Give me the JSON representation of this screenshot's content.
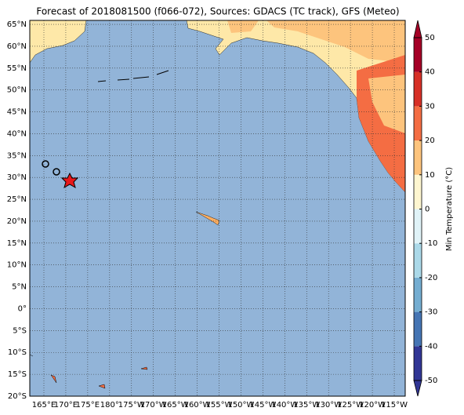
{
  "map": {
    "title": "Forecast of 2018081500 (f066-072), Sources: GDACS (TC track), GFS (Meteo)",
    "ocean_color": "#92b4d8",
    "grid": true,
    "xlim": [
      161.78,
      247.5
    ],
    "ylim": [
      -20,
      65.9
    ],
    "xticks": [
      {
        "value": 165,
        "label": "165°E"
      },
      {
        "value": 170,
        "label": "170°E"
      },
      {
        "value": 175,
        "label": "175°E"
      },
      {
        "value": 180,
        "label": "180°"
      },
      {
        "value": 185,
        "label": "175°W"
      },
      {
        "value": 190,
        "label": "170°W"
      },
      {
        "value": 195,
        "label": "165°W"
      },
      {
        "value": 200,
        "label": "160°W"
      },
      {
        "value": 205,
        "label": "155°W"
      },
      {
        "value": 210,
        "label": "150°W"
      },
      {
        "value": 215,
        "label": "145°W"
      },
      {
        "value": 220,
        "label": "140°W"
      },
      {
        "value": 225,
        "label": "135°W"
      },
      {
        "value": 230,
        "label": "130°W"
      },
      {
        "value": 235,
        "label": "125°W"
      },
      {
        "value": 240,
        "label": "120°W"
      },
      {
        "value": 245,
        "label": "115°W"
      }
    ],
    "yticks": [
      {
        "value": 65,
        "label": "65°N"
      },
      {
        "value": 60,
        "label": "60°N"
      },
      {
        "value": 55,
        "label": "55°N"
      },
      {
        "value": 50,
        "label": "50°N"
      },
      {
        "value": 45,
        "label": "45°N"
      },
      {
        "value": 40,
        "label": "40°N"
      },
      {
        "value": 35,
        "label": "35°N"
      },
      {
        "value": 30,
        "label": "30°N"
      },
      {
        "value": 25,
        "label": "25°N"
      },
      {
        "value": 20,
        "label": "20°N"
      },
      {
        "value": 15,
        "label": "15°N"
      },
      {
        "value": 10,
        "label": "10°N"
      },
      {
        "value": 5,
        "label": "5°N"
      },
      {
        "value": 0,
        "label": "0°"
      },
      {
        "value": -5,
        "label": "5°S"
      },
      {
        "value": -10,
        "label": "10°S"
      },
      {
        "value": -15,
        "label": "15°S"
      },
      {
        "value": -20,
        "label": "20°S"
      }
    ]
  },
  "colorbar": {
    "label": "Min Temperature (°C)",
    "lim": [
      -50,
      50
    ],
    "ticks": [
      50,
      40,
      30,
      20,
      10,
      0,
      -10,
      -20,
      -30,
      -40,
      -50
    ],
    "colors": [
      "#313695",
      "#4575b4",
      "#74add1",
      "#abd9e9",
      "#e0f3f8",
      "#fef6d0",
      "#fdc47d",
      "#f46d43",
      "#d73027",
      "#a50026"
    ]
  }
}
